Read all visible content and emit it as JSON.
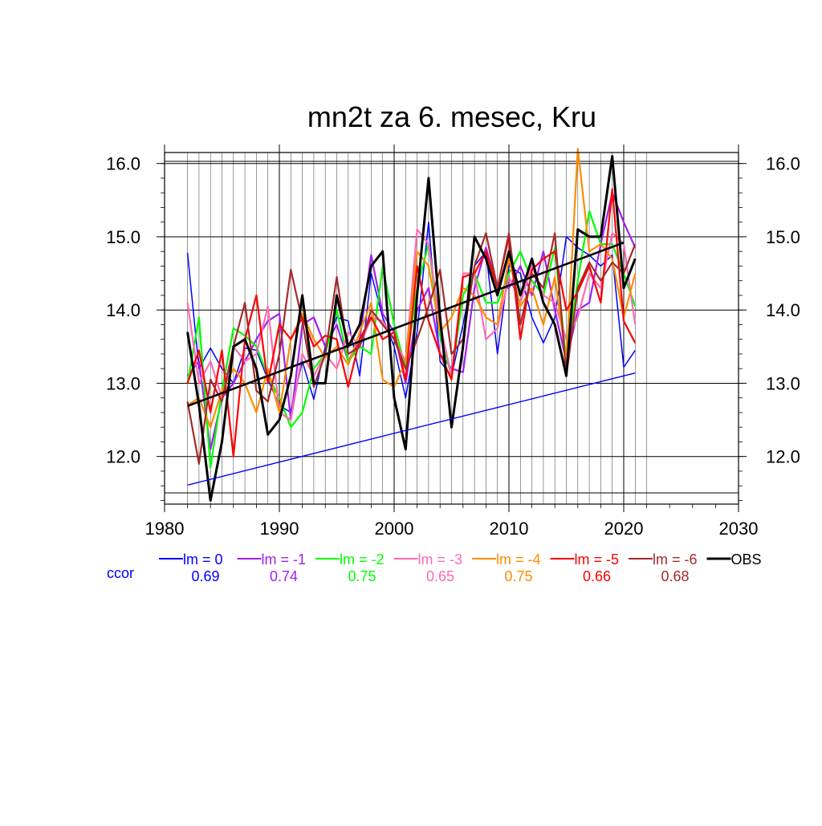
{
  "chart_data": {
    "type": "line",
    "title": "mn2t za 6. mesec, Kru",
    "xlabel": "",
    "ylabel": "",
    "xlim": [
      1980,
      2030
    ],
    "ylim": [
      11.35,
      16.15
    ],
    "x_ticks": [
      "1980",
      "1990",
      "2000",
      "2010",
      "2020",
      "2030"
    ],
    "y_ticks": [
      "12.0",
      "13.0",
      "14.0",
      "15.0",
      "16.0"
    ],
    "grid": true,
    "legend_position": "bottom",
    "ccor_label": "ccor",
    "x": [
      1982,
      1983,
      1984,
      1985,
      1986,
      1987,
      1988,
      1989,
      1990,
      1991,
      1992,
      1993,
      1994,
      1995,
      1996,
      1997,
      1998,
      1999,
      2000,
      2001,
      2002,
      2003,
      2004,
      2005,
      2006,
      2007,
      2008,
      2009,
      2010,
      2011,
      2012,
      2013,
      2014,
      2015,
      2016,
      2017,
      2018,
      2019,
      2020,
      2021
    ],
    "series": [
      {
        "name": "lm = 0",
        "ccor": "0.69",
        "color": "#0000ff",
        "values": [
          14.78,
          13.2,
          13.48,
          13.2,
          13.0,
          13.48,
          13.45,
          13.05,
          12.7,
          12.6,
          13.3,
          12.78,
          13.5,
          13.9,
          13.85,
          13.1,
          14.5,
          13.9,
          13.5,
          12.8,
          13.7,
          15.2,
          13.3,
          13.1,
          13.8,
          14.6,
          14.8,
          13.4,
          14.6,
          14.5,
          13.9,
          13.55,
          13.9,
          15.0,
          14.85,
          14.75,
          14.6,
          14.75,
          13.22,
          13.45
        ]
      },
      {
        "name": "lm = -1",
        "ccor": "0.74",
        "color": "#a020f0",
        "values": [
          13.1,
          13.3,
          12.1,
          12.8,
          13.0,
          13.3,
          13.6,
          13.85,
          13.95,
          12.5,
          13.8,
          13.9,
          13.5,
          13.8,
          13.3,
          13.6,
          14.75,
          13.95,
          13.7,
          13.0,
          14.0,
          14.3,
          13.4,
          13.2,
          13.15,
          14.3,
          14.85,
          14.3,
          14.3,
          14.6,
          14.2,
          14.8,
          14.0,
          13.3,
          14.0,
          14.1,
          14.9,
          15.6,
          15.2,
          14.85
        ]
      },
      {
        "name": "lm = -2",
        "ccor": "0.75",
        "color": "#00ff00",
        "values": [
          13.0,
          13.9,
          11.85,
          12.9,
          13.75,
          13.65,
          13.5,
          13.1,
          12.8,
          12.4,
          12.6,
          13.2,
          13.4,
          14.0,
          13.3,
          13.5,
          13.4,
          14.6,
          13.8,
          13.2,
          14.3,
          14.9,
          13.65,
          13.1,
          14.2,
          14.5,
          14.1,
          14.1,
          14.5,
          14.8,
          14.4,
          14.2,
          14.85,
          13.3,
          14.4,
          15.35,
          14.9,
          14.9,
          14.5,
          14.05
        ]
      },
      {
        "name": "lm = -3",
        "ccor": "0.65",
        "color": "#ff69b4",
        "values": [
          14.1,
          13.0,
          13.3,
          12.8,
          13.5,
          13.3,
          13.4,
          14.05,
          12.6,
          12.5,
          13.4,
          13.1,
          13.4,
          13.2,
          13.7,
          13.5,
          13.9,
          13.85,
          13.6,
          13.3,
          15.1,
          14.9,
          13.8,
          13.1,
          14.5,
          14.5,
          13.6,
          13.75,
          14.45,
          14.1,
          14.6,
          14.2,
          14.1,
          13.6,
          13.9,
          14.5,
          14.3,
          15.05,
          14.9,
          13.8
        ]
      },
      {
        "name": "lm = -4",
        "ccor": "0.75",
        "color": "#ff8c00",
        "values": [
          12.7,
          12.8,
          12.4,
          12.9,
          13.2,
          13.0,
          12.6,
          13.2,
          12.6,
          13.6,
          13.95,
          13.6,
          13.35,
          13.5,
          13.25,
          13.7,
          14.1,
          13.05,
          12.95,
          13.3,
          14.8,
          14.6,
          13.7,
          13.9,
          14.3,
          14.2,
          13.9,
          13.8,
          14.7,
          14.05,
          14.3,
          13.8,
          14.45,
          13.3,
          16.2,
          14.8,
          14.9,
          14.7,
          13.9,
          14.5
        ]
      },
      {
        "name": "lm = -5",
        "ccor": "0.66",
        "color": "#ff0000",
        "values": [
          13.0,
          13.45,
          12.6,
          13.45,
          12.0,
          13.6,
          14.2,
          13.0,
          13.8,
          13.6,
          13.9,
          13.5,
          13.65,
          13.6,
          12.95,
          13.6,
          13.9,
          13.6,
          13.7,
          13.05,
          14.6,
          13.85,
          13.4,
          13.05,
          14.45,
          14.5,
          14.8,
          14.3,
          15.0,
          13.6,
          14.55,
          14.7,
          14.8,
          14.0,
          14.25,
          14.6,
          14.1,
          15.65,
          13.85,
          13.55
        ]
      },
      {
        "name": "lm = -6",
        "ccor": "0.68",
        "color": "#a52a2a",
        "values": [
          12.75,
          11.9,
          13.05,
          12.75,
          13.5,
          14.1,
          12.9,
          12.75,
          13.4,
          14.55,
          13.85,
          12.95,
          13.4,
          14.45,
          13.4,
          13.5,
          14.0,
          13.8,
          13.6,
          13.2,
          13.6,
          14.05,
          14.55,
          13.4,
          13.6,
          14.6,
          15.05,
          14.3,
          15.05,
          13.8,
          14.5,
          14.3,
          15.05,
          13.1,
          14.3,
          14.65,
          14.4,
          14.65,
          14.5,
          14.9
        ]
      },
      {
        "name": "OBS",
        "ccor": "",
        "color": "#000000",
        "values": [
          13.7,
          12.7,
          11.4,
          12.2,
          13.5,
          13.6,
          13.2,
          12.3,
          12.5,
          13.1,
          14.2,
          13.0,
          13.0,
          14.2,
          13.5,
          13.8,
          14.6,
          14.8,
          12.8,
          12.1,
          14.2,
          15.8,
          13.9,
          12.4,
          13.5,
          15.0,
          14.7,
          14.2,
          14.8,
          14.2,
          14.7,
          14.1,
          13.8,
          13.1,
          15.1,
          15.0,
          15.0,
          16.1,
          14.3,
          14.7
        ]
      }
    ],
    "trend_lines": [
      {
        "series": "OBS",
        "x": [
          1982,
          2020
        ],
        "y": [
          12.69,
          14.92
        ],
        "color": "#000000"
      },
      {
        "series": "lm = 0",
        "x": [
          1982,
          2021
        ],
        "y": [
          11.61,
          13.14
        ],
        "color": "#0000ff"
      }
    ]
  }
}
